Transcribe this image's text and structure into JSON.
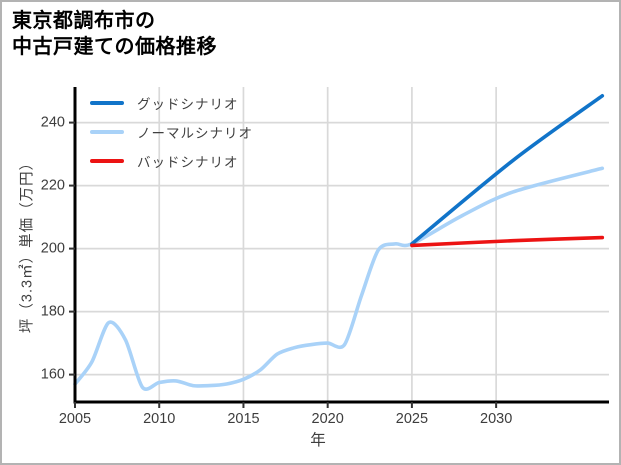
{
  "title": {
    "line1": "東京都調布市の",
    "line2": "中古戸建ての価格推移"
  },
  "legend": {
    "items": [
      {
        "id": "good",
        "label": "グッドシナリオ",
        "color": "#1174c9"
      },
      {
        "id": "normal",
        "label": "ノーマルシナリオ",
        "color": "#a9d2f8"
      },
      {
        "id": "bad",
        "label": "バッドシナリオ",
        "color": "#ec1313"
      }
    ]
  },
  "chart_data": {
    "type": "line",
    "title": "東京都調布市の中古戸建ての価格推移",
    "xlabel": "年",
    "ylabel": "坪（3.3㎡）単価（万円）",
    "xlim": [
      2005,
      2036.7
    ],
    "ylim": [
      151.3,
      251.3
    ],
    "x_ticks": [
      2005,
      2010,
      2015,
      2020,
      2025,
      2030
    ],
    "y_ticks": [
      160,
      180,
      200,
      220,
      240
    ],
    "grid": true,
    "legend_position": "upper-left",
    "colors": {
      "grid": "#d9d9d9",
      "spine": "#000000",
      "tick": "#333333",
      "tick_label": "#3d3d3d"
    },
    "series": [
      {
        "id": "normal",
        "name": "ノーマルシナリオ",
        "color": "#a9d2f8",
        "points": [
          [
            2005,
            157
          ],
          [
            2006,
            164
          ],
          [
            2007,
            176.5
          ],
          [
            2008,
            171
          ],
          [
            2009,
            156
          ],
          [
            2010,
            157.5
          ],
          [
            2011,
            158
          ],
          [
            2012,
            156.5
          ],
          [
            2013,
            156.5
          ],
          [
            2014,
            157
          ],
          [
            2015,
            158.5
          ],
          [
            2016,
            161.5
          ],
          [
            2017,
            166.5
          ],
          [
            2018,
            168.5
          ],
          [
            2019,
            169.5
          ],
          [
            2020,
            170
          ],
          [
            2021,
            169.5
          ],
          [
            2022,
            185
          ],
          [
            2023,
            199.5
          ],
          [
            2024,
            201.5
          ],
          [
            2025,
            201.5
          ],
          [
            2028,
            210.5
          ],
          [
            2031,
            218
          ],
          [
            2036.3,
            225.5
          ]
        ]
      },
      {
        "id": "good",
        "name": "グッドシナリオ",
        "color": "#1174c9",
        "points": [
          [
            2025,
            201.5
          ],
          [
            2031,
            228
          ],
          [
            2036.3,
            248.5
          ]
        ]
      },
      {
        "id": "bad",
        "name": "バッドシナリオ",
        "color": "#ec1313",
        "points": [
          [
            2025,
            201
          ],
          [
            2031,
            202.5
          ],
          [
            2036.3,
            203.5
          ]
        ]
      }
    ]
  }
}
